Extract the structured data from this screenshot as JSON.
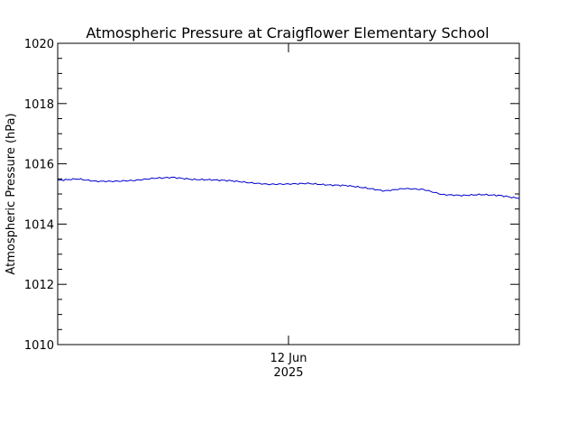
{
  "chart_data": {
    "type": "line",
    "title": "Atmospheric Pressure at Craigflower Elementary School",
    "xlabel": "",
    "ylabel": "Atmospheric Pressure (hPa)",
    "ylim": [
      1010,
      1020
    ],
    "xlim": [
      "2025-06-11T00:00",
      "2025-06-13T00:00"
    ],
    "y_ticks": [
      1010,
      1012,
      1014,
      1016,
      1018,
      1020
    ],
    "x_tick_labels": [
      {
        "x": "2025-06-12T00:00",
        "line1": "12 Jun",
        "line2": "2025"
      }
    ],
    "grid": false,
    "line_color": "#0000cc",
    "series": [
      {
        "x": [
          "2025-06-11T00:00",
          "2025-06-11T02:00",
          "2025-06-11T04:00",
          "2025-06-11T06:00",
          "2025-06-11T08:00",
          "2025-06-11T10:00",
          "2025-06-11T12:00",
          "2025-06-11T14:00",
          "2025-06-11T16:00",
          "2025-06-11T18:00",
          "2025-06-11T20:00",
          "2025-06-11T22:00",
          "2025-06-12T00:00",
          "2025-06-12T02:00",
          "2025-06-12T04:00",
          "2025-06-12T06:00",
          "2025-06-12T08:00",
          "2025-06-12T10:00",
          "2025-06-12T12:00",
          "2025-06-12T14:00",
          "2025-06-12T16:00",
          "2025-06-12T18:00",
          "2025-06-12T20:00",
          "2025-06-12T22:00",
          "2025-06-13T00:00"
        ],
        "y": [
          1015.45,
          1015.5,
          1015.42,
          1015.42,
          1015.45,
          1015.52,
          1015.55,
          1015.48,
          1015.47,
          1015.44,
          1015.37,
          1015.32,
          1015.33,
          1015.35,
          1015.3,
          1015.28,
          1015.2,
          1015.1,
          1015.18,
          1015.15,
          1014.98,
          1014.95,
          1014.98,
          1014.95,
          1014.85
        ]
      }
    ]
  }
}
